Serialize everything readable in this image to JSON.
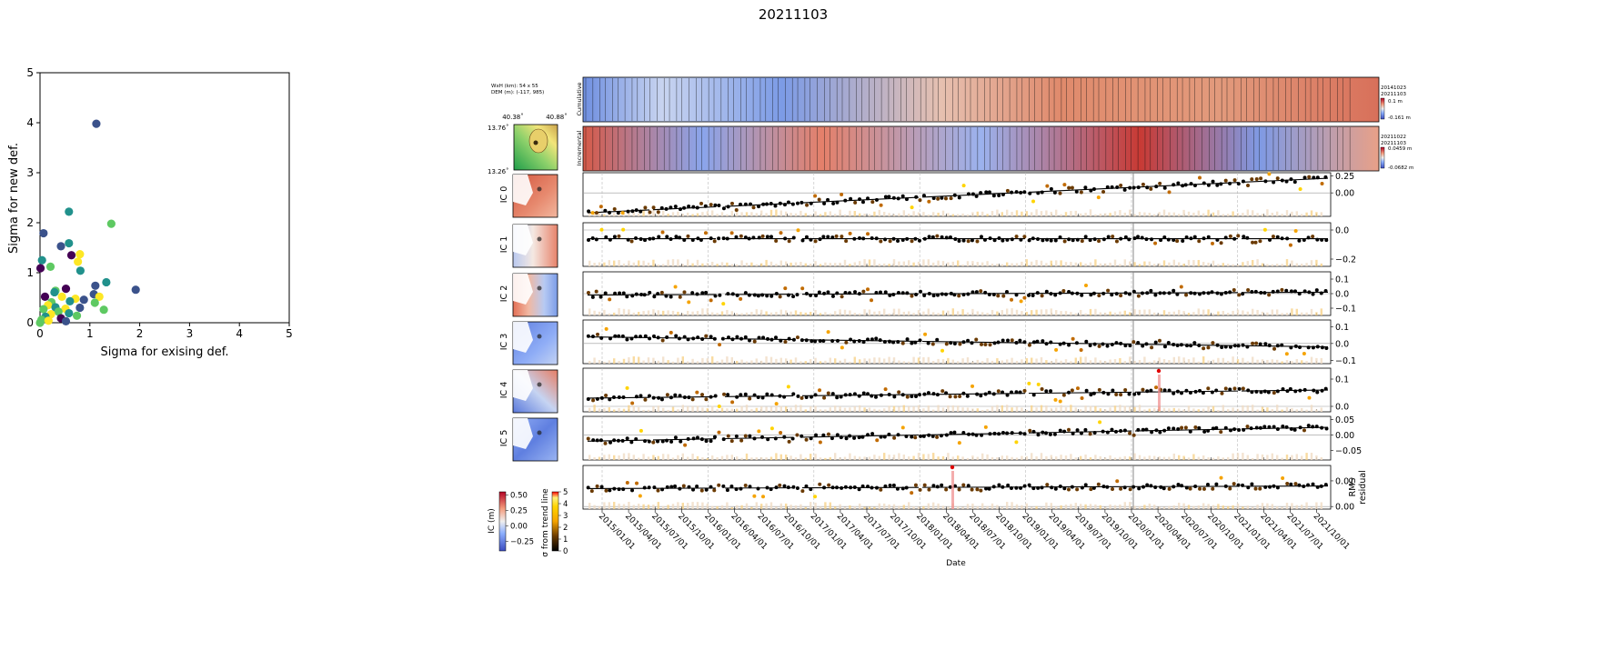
{
  "suptitle": "20211103",
  "colors": {
    "scatter_viridis": [
      "#440154",
      "#3b528b",
      "#21918c",
      "#5ec962",
      "#fde725"
    ],
    "sigma_scale": [
      "#000000",
      "#6b3a00",
      "#c06a00",
      "#f5a300",
      "#ffd400",
      "#fff07a"
    ],
    "ic_colormap": [
      "#3b4cc0",
      "#8db0fe",
      "#f2f2f2",
      "#f49a7b",
      "#b40426"
    ],
    "dem_colormap": [
      "#1f9e4a",
      "#8ed16b",
      "#f2e57a",
      "#c9a14a"
    ],
    "trend_line": "#000000",
    "rms_highlight": "#f08a8a"
  },
  "meta": {
    "size_line": "WxH (km): 54 x 55",
    "dem_line": "DEM (m): (-117, 985)",
    "lon_left": "40.38˚",
    "lon_right": "40.88˚",
    "lat_top": "13.76˚",
    "lat_bottom": "13.26˚"
  },
  "strips": {
    "cumulative": {
      "label": "Cumulative",
      "date1": "20141023",
      "date2": "20211103",
      "max": "0.1 m",
      "min": "-0.161 m"
    },
    "incremental": {
      "label": "Incremental",
      "date1": "20211022",
      "date2": "20211103",
      "max": "0.0459 m",
      "min": "-0.0682 m"
    }
  },
  "colorbars": {
    "ic": {
      "label": "IC (m)",
      "ticks": [
        "0.50",
        "0.25",
        "0.00",
        "−0.25"
      ]
    },
    "sigma": {
      "label": "σ from trend line",
      "ticks": [
        "5",
        "4",
        "3",
        "2",
        "1",
        "0"
      ]
    }
  },
  "time_axis": {
    "xlabel": "Date",
    "ticks": [
      "2015/01/01",
      "2015/04/01",
      "2015/07/01",
      "2015/10/01",
      "2016/01/01",
      "2016/04/01",
      "2016/07/01",
      "2016/10/01",
      "2017/01/01",
      "2017/04/01",
      "2017/07/01",
      "2017/10/01",
      "2018/01/01",
      "2018/04/01",
      "2018/07/01",
      "2018/10/01",
      "2019/01/01",
      "2019/04/01",
      "2019/07/01",
      "2019/10/01",
      "2020/01/01",
      "2020/04/01",
      "2020/07/01",
      "2020/10/01",
      "2021/01/01",
      "2021/04/01",
      "2021/07/01",
      "2021/10/01"
    ]
  },
  "chart_data": [
    {
      "type": "scatter",
      "title": "",
      "xlabel": "Sigma for exising def.",
      "ylabel": "Sigma for new def.",
      "xlim": [
        0,
        5
      ],
      "ylim": [
        0,
        5
      ],
      "xticks": [
        "0",
        "1",
        "2",
        "3",
        "4",
        "5"
      ],
      "yticks": [
        "0",
        "1",
        "2",
        "3",
        "4",
        "5"
      ],
      "grid": false,
      "points": [
        {
          "x": 1.13,
          "y": 3.98,
          "c": 1
        },
        {
          "x": 0.58,
          "y": 2.22,
          "c": 2
        },
        {
          "x": 1.43,
          "y": 1.98,
          "c": 3
        },
        {
          "x": 0.07,
          "y": 1.79,
          "c": 1
        },
        {
          "x": 0.42,
          "y": 1.53,
          "c": 1
        },
        {
          "x": 0.58,
          "y": 1.59,
          "c": 2
        },
        {
          "x": 0.63,
          "y": 1.35,
          "c": 0
        },
        {
          "x": 0.8,
          "y": 1.37,
          "c": 4
        },
        {
          "x": 0.76,
          "y": 1.22,
          "c": 4
        },
        {
          "x": 0.04,
          "y": 1.25,
          "c": 2
        },
        {
          "x": 0.21,
          "y": 1.12,
          "c": 3
        },
        {
          "x": 0.01,
          "y": 1.09,
          "c": 0
        },
        {
          "x": 0.81,
          "y": 1.04,
          "c": 2
        },
        {
          "x": 1.33,
          "y": 0.81,
          "c": 2
        },
        {
          "x": 1.92,
          "y": 0.66,
          "c": 1
        },
        {
          "x": 1.11,
          "y": 0.74,
          "c": 1
        },
        {
          "x": 0.52,
          "y": 0.68,
          "c": 0
        },
        {
          "x": 0.31,
          "y": 0.64,
          "c": 3
        },
        {
          "x": 0.29,
          "y": 0.61,
          "c": 2
        },
        {
          "x": 0.1,
          "y": 0.52,
          "c": 0
        },
        {
          "x": 1.08,
          "y": 0.57,
          "c": 1
        },
        {
          "x": 1.19,
          "y": 0.52,
          "c": 4
        },
        {
          "x": 0.71,
          "y": 0.48,
          "c": 4
        },
        {
          "x": 0.44,
          "y": 0.52,
          "c": 4
        },
        {
          "x": 0.88,
          "y": 0.46,
          "c": 1
        },
        {
          "x": 0.6,
          "y": 0.43,
          "c": 2
        },
        {
          "x": 0.23,
          "y": 0.41,
          "c": 3
        },
        {
          "x": 1.1,
          "y": 0.4,
          "c": 3
        },
        {
          "x": 0.16,
          "y": 0.35,
          "c": 4
        },
        {
          "x": 0.31,
          "y": 0.31,
          "c": 2
        },
        {
          "x": 0.51,
          "y": 0.28,
          "c": 4
        },
        {
          "x": 0.8,
          "y": 0.3,
          "c": 1
        },
        {
          "x": 1.28,
          "y": 0.26,
          "c": 3
        },
        {
          "x": 0.07,
          "y": 0.27,
          "c": 3
        },
        {
          "x": 0.37,
          "y": 0.22,
          "c": 3
        },
        {
          "x": 0.58,
          "y": 0.19,
          "c": 2
        },
        {
          "x": 0.22,
          "y": 0.17,
          "c": 4
        },
        {
          "x": 0.74,
          "y": 0.14,
          "c": 3
        },
        {
          "x": 0.11,
          "y": 0.12,
          "c": 2
        },
        {
          "x": 0.42,
          "y": 0.09,
          "c": 0
        },
        {
          "x": 0.03,
          "y": 0.06,
          "c": 3
        },
        {
          "x": 0.17,
          "y": 0.04,
          "c": 4
        },
        {
          "x": 0.52,
          "y": 0.03,
          "c": 1
        },
        {
          "x": 0.0,
          "y": 0.0,
          "c": 3
        }
      ]
    },
    {
      "type": "line",
      "title": "",
      "xlabel": "Date",
      "grid": false,
      "panels": [
        {
          "label": "IC 0",
          "yticks": [
            "0.25",
            "0.00"
          ],
          "ylim": [
            -0.35,
            0.3
          ],
          "trend": [
            -0.3,
            0.22
          ],
          "dashed": false,
          "img": "sw_pos"
        },
        {
          "label": "IC 1",
          "yticks": [
            "0.0",
            "−0.2"
          ],
          "ylim": [
            -0.25,
            0.05
          ],
          "trend": [
            -0.06,
            -0.06
          ],
          "dashed": false,
          "img": "hill"
        },
        {
          "label": "IC 2",
          "yticks": [
            "0.1",
            "0.0",
            "−0.1"
          ],
          "ylim": [
            -0.15,
            0.15
          ],
          "trend": [
            -0.01,
            0.01
          ],
          "dashed": false,
          "img": "sw_neg"
        },
        {
          "label": "IC 3",
          "yticks": [
            "0.1",
            "0.0",
            "−0.1"
          ],
          "ylim": [
            -0.12,
            0.14
          ],
          "trend": [
            0.04,
            -0.02
          ],
          "dashed": true,
          "img": "neg"
        },
        {
          "label": "IC 4",
          "yticks": [
            "0.1",
            "0.0"
          ],
          "ylim": [
            -0.02,
            0.14
          ],
          "trend": [
            0.03,
            0.06
          ],
          "dashed": true,
          "img": "ne_pos"
        },
        {
          "label": "IC 5",
          "yticks": [
            "0.05",
            "0.00",
            "−0.05"
          ],
          "ylim": [
            -0.08,
            0.06
          ],
          "trend": [
            -0.02,
            0.025
          ],
          "dashed": true,
          "img": "mixed"
        },
        {
          "label": "RMS\nresidual",
          "label_lines": [
            "RMS",
            "residual"
          ],
          "yticks": [
            "0.01",
            "0.00"
          ],
          "ylim": [
            -0.001,
            0.016
          ],
          "trend": [
            0.007,
            0.008
          ],
          "dashed": true,
          "img": ""
        }
      ]
    }
  ]
}
